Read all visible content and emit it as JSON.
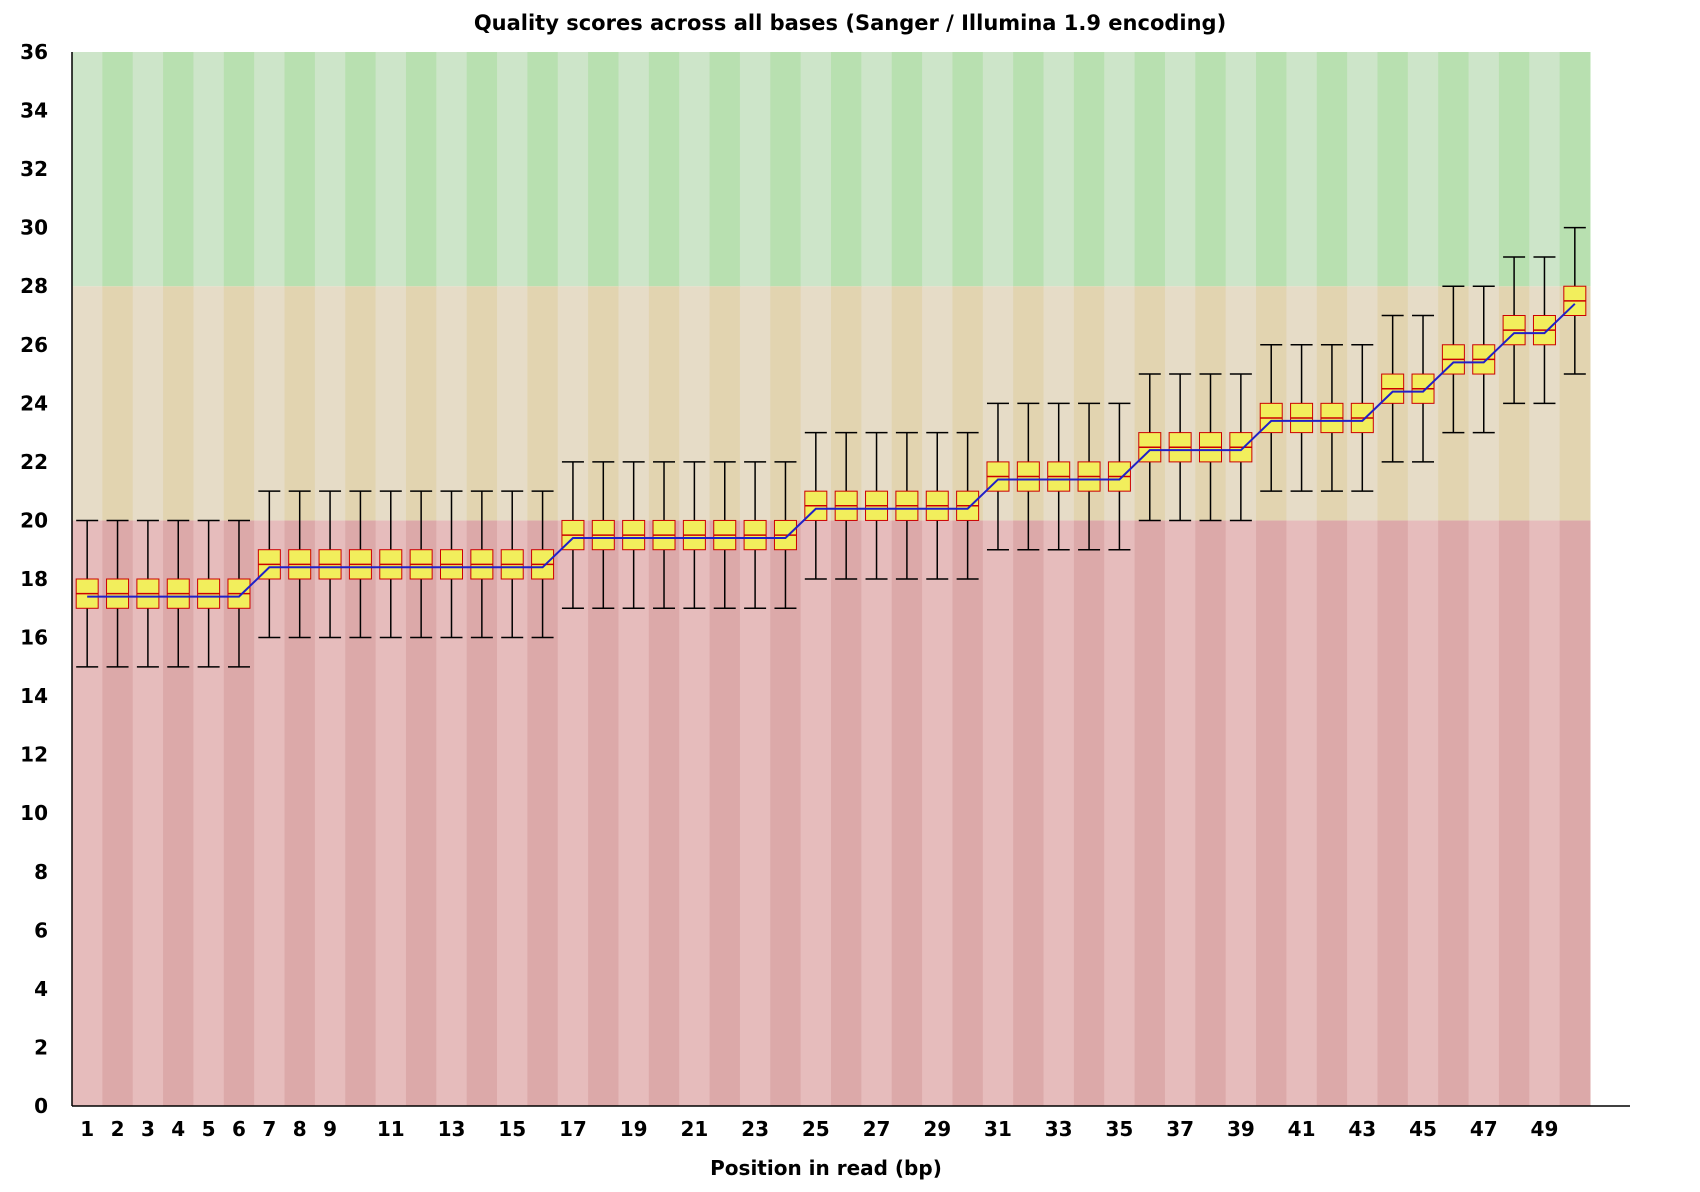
{
  "chart_data": {
    "type": "box",
    "title": "Quality scores across all bases (Sanger / Illumina 1.9 encoding)",
    "xlabel": "Position in read (bp)",
    "ylabel": "",
    "ylim": [
      0,
      36
    ],
    "xlim": [
      1,
      50
    ],
    "y_ticks": [
      0,
      2,
      4,
      6,
      8,
      10,
      12,
      14,
      16,
      18,
      20,
      22,
      24,
      26,
      28,
      30,
      32,
      34,
      36
    ],
    "x_tick_labels": [
      "1",
      "2",
      "3",
      "4",
      "5",
      "6",
      "7",
      "8",
      "9",
      "11",
      "13",
      "15",
      "17",
      "19",
      "21",
      "23",
      "25",
      "27",
      "29",
      "31",
      "33",
      "35",
      "37",
      "39",
      "41",
      "43",
      "45",
      "47",
      "49"
    ],
    "x_tick_positions": [
      1,
      2,
      3,
      4,
      5,
      6,
      7,
      8,
      9,
      11,
      13,
      15,
      17,
      19,
      21,
      23,
      25,
      27,
      29,
      31,
      33,
      35,
      37,
      39,
      41,
      43,
      45,
      47,
      49
    ],
    "bands": [
      {
        "from": 0,
        "to": 20,
        "quality": "poor",
        "colors": [
          "#e6bcbc",
          "#dca9a9"
        ]
      },
      {
        "from": 20,
        "to": 28,
        "quality": "reasonable",
        "colors": [
          "#e6dcc7",
          "#e2d4b0"
        ]
      },
      {
        "from": 28,
        "to": 36,
        "quality": "good",
        "colors": [
          "#cde5c9",
          "#b8e0b0"
        ]
      }
    ],
    "grid": false,
    "colors": {
      "box_fill": "#f2ee5c",
      "box_border": "#cc0000",
      "mean_line": "#2020c8",
      "whisker": "#000000"
    },
    "series": [
      {
        "positions": [
          1,
          2,
          3,
          4,
          5,
          6,
          7,
          8,
          9,
          10,
          11,
          12,
          13,
          14,
          15,
          16,
          17,
          18,
          19,
          20,
          21,
          22,
          23,
          24,
          25,
          26,
          27,
          28,
          29,
          30,
          31,
          32,
          33,
          34,
          35,
          36,
          37,
          38,
          39,
          40,
          41,
          42,
          43,
          44,
          45,
          46,
          47,
          48,
          49,
          50
        ],
        "q1": [
          17,
          17,
          17,
          17,
          17,
          17,
          18,
          18,
          18,
          18,
          18,
          18,
          18,
          18,
          18,
          18,
          19,
          19,
          19,
          19,
          19,
          19,
          19,
          19,
          20,
          20,
          20,
          20,
          20,
          20,
          21,
          21,
          21,
          21,
          21,
          22,
          22,
          22,
          22,
          23,
          23,
          23,
          23,
          24,
          24,
          25,
          25,
          26,
          26,
          27
        ],
        "q3": [
          18,
          18,
          18,
          18,
          18,
          18,
          19,
          19,
          19,
          19,
          19,
          19,
          19,
          19,
          19,
          19,
          20,
          20,
          20,
          20,
          20,
          20,
          20,
          20,
          21,
          21,
          21,
          21,
          21,
          21,
          22,
          22,
          22,
          22,
          22,
          23,
          23,
          23,
          23,
          24,
          24,
          24,
          24,
          25,
          25,
          26,
          26,
          27,
          27,
          28
        ],
        "median": [
          17.5,
          17.5,
          17.5,
          17.5,
          17.5,
          17.5,
          18.5,
          18.5,
          18.5,
          18.5,
          18.5,
          18.5,
          18.5,
          18.5,
          18.5,
          18.5,
          19.5,
          19.5,
          19.5,
          19.5,
          19.5,
          19.5,
          19.5,
          19.5,
          20.5,
          20.5,
          20.5,
          20.5,
          20.5,
          20.5,
          21.5,
          21.5,
          21.5,
          21.5,
          21.5,
          22.5,
          22.5,
          22.5,
          22.5,
          23.5,
          23.5,
          23.5,
          23.5,
          24.5,
          24.5,
          25.5,
          25.5,
          26.5,
          26.5,
          27.5
        ],
        "mean": [
          17.4,
          17.4,
          17.4,
          17.4,
          17.4,
          17.4,
          18.4,
          18.4,
          18.4,
          18.4,
          18.4,
          18.4,
          18.4,
          18.4,
          18.4,
          18.4,
          19.4,
          19.4,
          19.4,
          19.4,
          19.4,
          19.4,
          19.4,
          19.4,
          20.4,
          20.4,
          20.4,
          20.4,
          20.4,
          20.4,
          21.4,
          21.4,
          21.4,
          21.4,
          21.4,
          22.4,
          22.4,
          22.4,
          22.4,
          23.4,
          23.4,
          23.4,
          23.4,
          24.4,
          24.4,
          25.4,
          25.4,
          26.4,
          26.4,
          27.4
        ],
        "lower": [
          15,
          15,
          15,
          15,
          15,
          15,
          16,
          16,
          16,
          16,
          16,
          16,
          16,
          16,
          16,
          16,
          17,
          17,
          17,
          17,
          17,
          17,
          17,
          17,
          18,
          18,
          18,
          18,
          18,
          18,
          19,
          19,
          19,
          19,
          19,
          20,
          20,
          20,
          20,
          21,
          21,
          21,
          21,
          22,
          22,
          23,
          23,
          24,
          24,
          25
        ],
        "upper": [
          20,
          20,
          20,
          20,
          20,
          20,
          21,
          21,
          21,
          21,
          21,
          21,
          21,
          21,
          21,
          21,
          22,
          22,
          22,
          22,
          22,
          22,
          22,
          22,
          23,
          23,
          23,
          23,
          23,
          23,
          24,
          24,
          24,
          24,
          24,
          25,
          25,
          25,
          25,
          26,
          26,
          26,
          26,
          27,
          27,
          28,
          28,
          29,
          29,
          30
        ]
      }
    ]
  }
}
